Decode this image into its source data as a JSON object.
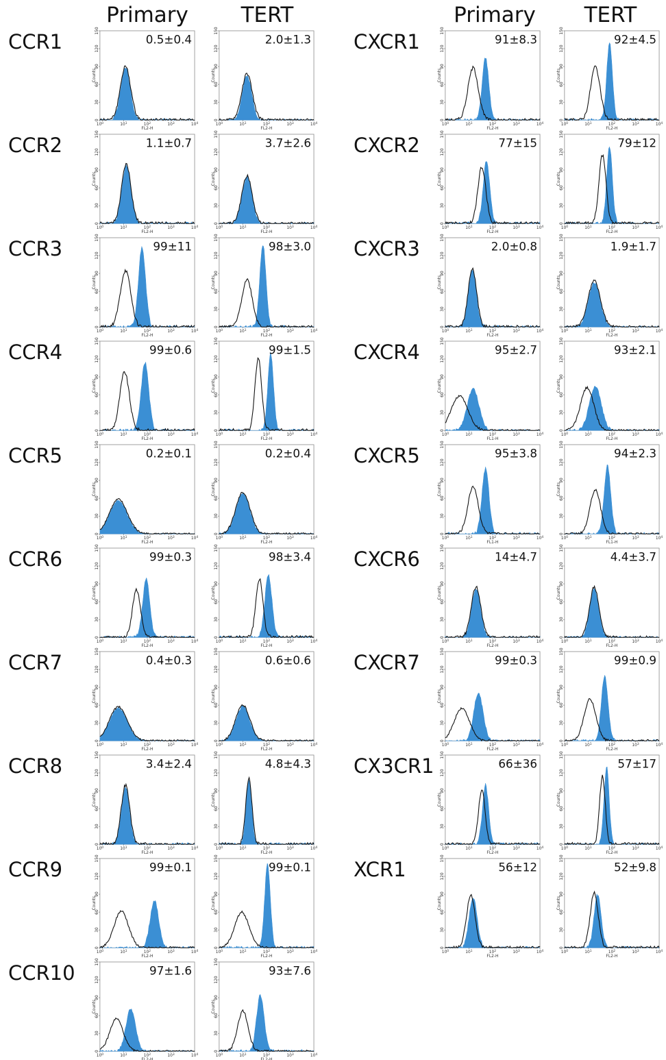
{
  "headers": {
    "ccr_primary": "Primary",
    "ccr_tert": "TERT",
    "cxcr_primary": "Primary",
    "cxcr_tert": "TERT"
  },
  "colors": {
    "filled": "#3b8fd4",
    "outline": "#111111"
  },
  "chart_data": {
    "type": "histogram-grid",
    "x_scale": "log",
    "xlim": [
      1,
      10000
    ],
    "x_ticks": [
      "10",
      "10",
      "10",
      "10",
      "10"
    ],
    "x_tick_exponents": [
      "0",
      "1",
      "2",
      "3",
      "4"
    ],
    "ylim": [
      0,
      150
    ],
    "y_ticks": [
      "0",
      "30",
      "60",
      "90",
      "120",
      "150"
    ],
    "ylabel": "Counts",
    "blocks": [
      {
        "rows": [
          {
            "label": "CCR1",
            "panels": [
              {
                "value": "0.5±0.4",
                "xlabel": "FL2-H",
                "iso": {
                  "center": 12,
                  "peak": 90,
                  "width": 0.22
                },
                "stain": {
                  "center": 12,
                  "peak": 88,
                  "width": 0.2
                }
              },
              {
                "value": "2.0±1.3",
                "xlabel": "FL2-H",
                "iso": {
                  "center": 15,
                  "peak": 78,
                  "width": 0.22
                },
                "stain": {
                  "center": 15,
                  "peak": 75,
                  "width": 0.2
                }
              }
            ]
          },
          {
            "label": "CCR2",
            "panels": [
              {
                "value": "1.1±0.7",
                "xlabel": "FL2-H",
                "iso": {
                  "center": 13,
                  "peak": 100,
                  "width": 0.2
                },
                "stain": {
                  "center": 13,
                  "peak": 98,
                  "width": 0.19
                }
              },
              {
                "value": "3.7±2.6",
                "xlabel": "FL2-H",
                "iso": {
                  "center": 15,
                  "peak": 80,
                  "width": 0.22
                },
                "stain": {
                  "center": 15,
                  "peak": 78,
                  "width": 0.21
                }
              }
            ]
          },
          {
            "label": "CCR3",
            "panels": [
              {
                "value": "99±11",
                "xlabel": "FL2-H",
                "iso": {
                  "center": 12,
                  "peak": 95,
                  "width": 0.22
                },
                "stain": {
                  "center": 60,
                  "peak": 135,
                  "width": 0.15
                }
              },
              {
                "value": "98±3.0",
                "xlabel": "FL2-H",
                "iso": {
                  "center": 15,
                  "peak": 80,
                  "width": 0.22
                },
                "stain": {
                  "center": 70,
                  "peak": 140,
                  "width": 0.13
                }
              }
            ]
          },
          {
            "label": "CCR4",
            "panels": [
              {
                "value": "99±0.6",
                "xlabel": "FL2-H",
                "iso": {
                  "center": 11,
                  "peak": 98,
                  "width": 0.2
                },
                "stain": {
                  "center": 80,
                  "peak": 115,
                  "width": 0.16
                }
              },
              {
                "value": "99±1.5",
                "xlabel": "FL2-H",
                "iso": {
                  "center": 45,
                  "peak": 122,
                  "width": 0.14
                },
                "stain": {
                  "center": 150,
                  "peak": 130,
                  "width": 0.12
                }
              }
            ]
          },
          {
            "label": "CCR5",
            "panels": [
              {
                "value": "0.2±0.1",
                "xlabel": "FL2-H",
                "iso": {
                  "center": 6,
                  "peak": 58,
                  "width": 0.38
                },
                "stain": {
                  "center": 6,
                  "peak": 56,
                  "width": 0.37
                }
              },
              {
                "value": "0.2±0.4",
                "xlabel": "FL2-H",
                "iso": {
                  "center": 10,
                  "peak": 70,
                  "width": 0.3
                },
                "stain": {
                  "center": 10,
                  "peak": 68,
                  "width": 0.29
                }
              }
            ]
          },
          {
            "label": "CCR6",
            "panels": [
              {
                "value": "99±0.3",
                "xlabel": "FL2-H",
                "iso": {
                  "center": 35,
                  "peak": 80,
                  "width": 0.17
                },
                "stain": {
                  "center": 90,
                  "peak": 98,
                  "width": 0.15
                }
              },
              {
                "value": "98±3.4",
                "xlabel": "FL2-H",
                "iso": {
                  "center": 50,
                  "peak": 98,
                  "width": 0.15
                },
                "stain": {
                  "center": 120,
                  "peak": 105,
                  "width": 0.15
                }
              }
            ]
          },
          {
            "label": "CCR7",
            "panels": [
              {
                "value": "0.4±0.3",
                "xlabel": "FL2-H",
                "iso": {
                  "center": 6,
                  "peak": 57,
                  "width": 0.38
                },
                "stain": {
                  "center": 6,
                  "peak": 55,
                  "width": 0.37
                }
              },
              {
                "value": "0.6±0.6",
                "xlabel": "FL2-H",
                "iso": {
                  "center": 10,
                  "peak": 60,
                  "width": 0.3
                },
                "stain": {
                  "center": 10,
                  "peak": 58,
                  "width": 0.29
                }
              }
            ]
          },
          {
            "label": "CCR8",
            "panels": [
              {
                "value": "3.4±2.4",
                "xlabel": "FL2-H",
                "iso": {
                  "center": 12,
                  "peak": 100,
                  "width": 0.18
                },
                "stain": {
                  "center": 12,
                  "peak": 96,
                  "width": 0.17
                }
              },
              {
                "value": "4.8±4.3",
                "xlabel": "FL2-H",
                "iso": {
                  "center": 18,
                  "peak": 112,
                  "width": 0.13
                },
                "stain": {
                  "center": 18,
                  "peak": 108,
                  "width": 0.12
                }
              }
            ]
          },
          {
            "label": "CCR9",
            "panels": [
              {
                "value": "99±0.1",
                "xlabel": "FL2-H",
                "iso": {
                  "center": 8,
                  "peak": 62,
                  "width": 0.3
                },
                "stain": {
                  "center": 200,
                  "peak": 80,
                  "width": 0.18
                }
              },
              {
                "value": "99±0.1",
                "xlabel": "FL2-H",
                "iso": {
                  "center": 9,
                  "peak": 60,
                  "width": 0.3
                },
                "stain": {
                  "center": 110,
                  "peak": 140,
                  "width": 0.12
                }
              }
            ]
          },
          {
            "label": "CCR10",
            "panels": [
              {
                "value": "97±1.6",
                "xlabel": "FL2-H",
                "iso": {
                  "center": 5,
                  "peak": 55,
                  "width": 0.28
                },
                "stain": {
                  "center": 20,
                  "peak": 72,
                  "width": 0.2
                }
              },
              {
                "value": "93±7.6",
                "xlabel": "FL2-H",
                "iso": {
                  "center": 10,
                  "peak": 68,
                  "width": 0.22
                },
                "stain": {
                  "center": 55,
                  "peak": 95,
                  "width": 0.16
                }
              }
            ]
          }
        ]
      },
      {
        "rows": [
          {
            "label": "CXCR1",
            "panels": [
              {
                "value": "91±8.3",
                "xlabel": "FL2-H",
                "iso": {
                  "center": 15,
                  "peak": 88,
                  "width": 0.22
                },
                "stain": {
                  "center": 50,
                  "peak": 105,
                  "width": 0.14
                }
              },
              {
                "value": "92±4.5",
                "xlabel": "FL2-H",
                "iso": {
                  "center": 20,
                  "peak": 90,
                  "width": 0.2
                },
                "stain": {
                  "center": 80,
                  "peak": 130,
                  "width": 0.12
                }
              }
            ]
          },
          {
            "label": "CXCR2",
            "panels": [
              {
                "value": "77±15",
                "xlabel": "FL2-H",
                "iso": {
                  "center": 35,
                  "peak": 95,
                  "width": 0.17
                },
                "stain": {
                  "center": 55,
                  "peak": 105,
                  "width": 0.14
                }
              },
              {
                "value": "79±12",
                "xlabel": "FL2-H",
                "iso": {
                  "center": 40,
                  "peak": 115,
                  "width": 0.15
                },
                "stain": {
                  "center": 80,
                  "peak": 130,
                  "width": 0.12
                }
              }
            ]
          },
          {
            "label": "CXCR3",
            "panels": [
              {
                "value": "2.0±0.8",
                "xlabel": "FL2-H",
                "iso": {
                  "center": 14,
                  "peak": 98,
                  "width": 0.18
                },
                "stain": {
                  "center": 14,
                  "peak": 95,
                  "width": 0.17
                }
              },
              {
                "value": "1.9±1.7",
                "xlabel": "FL2-H",
                "iso": {
                  "center": 18,
                  "peak": 78,
                  "width": 0.26
                },
                "stain": {
                  "center": 18,
                  "peak": 75,
                  "width": 0.25
                }
              }
            ]
          },
          {
            "label": "CXCR4",
            "panels": [
              {
                "value": "95±2.7",
                "xlabel": "FL1-H",
                "iso": {
                  "center": 4,
                  "peak": 58,
                  "width": 0.35
                },
                "stain": {
                  "center": 15,
                  "peak": 70,
                  "width": 0.25
                }
              },
              {
                "value": "93±2.1",
                "xlabel": "FL2-H",
                "iso": {
                  "center": 9,
                  "peak": 72,
                  "width": 0.28
                },
                "stain": {
                  "center": 20,
                  "peak": 75,
                  "width": 0.25
                }
              }
            ]
          },
          {
            "label": "CXCR5",
            "panels": [
              {
                "value": "95±3.8",
                "xlabel": "FL1-H",
                "iso": {
                  "center": 15,
                  "peak": 80,
                  "width": 0.22
                },
                "stain": {
                  "center": 50,
                  "peak": 110,
                  "width": 0.15
                }
              },
              {
                "value": "94±2.3",
                "xlabel": "FL1-H",
                "iso": {
                  "center": 20,
                  "peak": 75,
                  "width": 0.22
                },
                "stain": {
                  "center": 65,
                  "peak": 115,
                  "width": 0.14
                }
              }
            ]
          },
          {
            "label": "CXCR6",
            "panels": [
              {
                "value": "14±4.7",
                "xlabel": "FL2-H",
                "iso": {
                  "center": 20,
                  "peak": 85,
                  "width": 0.2
                },
                "stain": {
                  "center": 20,
                  "peak": 82,
                  "width": 0.19
                }
              },
              {
                "value": "4.4±3.7",
                "xlabel": "FL2-H",
                "iso": {
                  "center": 18,
                  "peak": 85,
                  "width": 0.2
                },
                "stain": {
                  "center": 18,
                  "peak": 82,
                  "width": 0.19
                }
              }
            ]
          },
          {
            "label": "CXCR7",
            "panels": [
              {
                "value": "99±0.3",
                "xlabel": "FL2-H",
                "iso": {
                  "center": 5,
                  "peak": 55,
                  "width": 0.32
                },
                "stain": {
                  "center": 25,
                  "peak": 80,
                  "width": 0.2
                }
              },
              {
                "value": "99±0.9",
                "xlabel": "FL2-H",
                "iso": {
                  "center": 12,
                  "peak": 70,
                  "width": 0.25
                },
                "stain": {
                  "center": 50,
                  "peak": 110,
                  "width": 0.14
                }
              }
            ]
          },
          {
            "label": "CX3CR1",
            "panels": [
              {
                "value": "66±36",
                "xlabel": "FL2-H",
                "iso": {
                  "center": 35,
                  "peak": 92,
                  "width": 0.14
                },
                "stain": {
                  "center": 50,
                  "peak": 100,
                  "width": 0.13
                }
              },
              {
                "value": "57±17",
                "xlabel": "FL2-H",
                "iso": {
                  "center": 40,
                  "peak": 115,
                  "width": 0.12
                },
                "stain": {
                  "center": 60,
                  "peak": 130,
                  "width": 0.11
                }
              }
            ]
          },
          {
            "label": "XCR1",
            "panels": [
              {
                "value": "56±12",
                "xlabel": "FL2-H",
                "iso": {
                  "center": 12,
                  "peak": 90,
                  "width": 0.18
                },
                "stain": {
                  "center": 15,
                  "peak": 85,
                  "width": 0.17
                }
              },
              {
                "value": "52±9.8",
                "xlabel": "FL2-H",
                "iso": {
                  "center": 18,
                  "peak": 92,
                  "width": 0.17
                },
                "stain": {
                  "center": 25,
                  "peak": 90,
                  "width": 0.15
                }
              }
            ]
          }
        ]
      }
    ]
  }
}
